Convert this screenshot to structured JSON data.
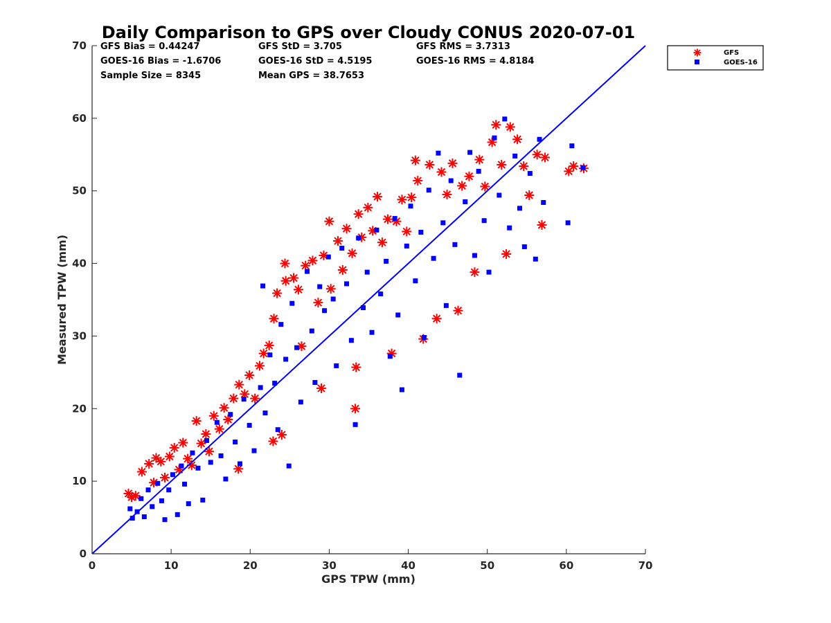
{
  "chart_data": {
    "type": "scatter",
    "title": "Daily Comparison to GPS over Cloudy CONUS 2020-07-01",
    "xlabel": "GPS TPW (mm)",
    "ylabel": "Measured TPW (mm)",
    "xlim": [
      0,
      70
    ],
    "ylim": [
      0,
      70
    ],
    "xticks": [
      "0",
      "10",
      "20",
      "30",
      "40",
      "50",
      "60",
      "70"
    ],
    "yticks": [
      "0",
      "10",
      "20",
      "30",
      "40",
      "50",
      "60",
      "70"
    ],
    "grid": false,
    "legend_position": "outside top-right",
    "stats": [
      [
        "GFS Bias = 0.44247",
        "GFS StD = 3.705",
        "GFS RMS = 3.7313"
      ],
      [
        "GOES-16 Bias = -1.6706",
        "GOES-16 StD = 4.5195",
        "GOES-16 RMS = 4.8184"
      ],
      [
        "Sample Size = 8345",
        "Mean GPS = 38.7653",
        ""
      ]
    ],
    "reference_line": {
      "x": [
        0,
        70
      ],
      "y": [
        0,
        70
      ],
      "color": "#0000ff"
    },
    "series": [
      {
        "name": "GFS",
        "marker": "asterisk",
        "color": "#ff0000",
        "points": [
          [
            4.6,
            8.3
          ],
          [
            5.0,
            7.8
          ],
          [
            5.5,
            8.0
          ],
          [
            6.3,
            11.3
          ],
          [
            7.2,
            12.4
          ],
          [
            7.8,
            9.8
          ],
          [
            8.1,
            13.2
          ],
          [
            8.7,
            12.7
          ],
          [
            9.2,
            10.5
          ],
          [
            9.8,
            13.4
          ],
          [
            10.4,
            14.6
          ],
          [
            11.0,
            11.6
          ],
          [
            11.5,
            15.3
          ],
          [
            12.1,
            13.1
          ],
          [
            12.6,
            12.2
          ],
          [
            13.2,
            18.3
          ],
          [
            13.8,
            15.2
          ],
          [
            14.4,
            16.5
          ],
          [
            14.8,
            14.1
          ],
          [
            15.4,
            19.0
          ],
          [
            16.1,
            17.2
          ],
          [
            16.7,
            20.1
          ],
          [
            17.2,
            18.5
          ],
          [
            17.9,
            21.4
          ],
          [
            18.5,
            11.7
          ],
          [
            18.6,
            23.3
          ],
          [
            19.3,
            22.0
          ],
          [
            19.9,
            24.6
          ],
          [
            20.6,
            21.4
          ],
          [
            21.2,
            25.9
          ],
          [
            21.7,
            27.6
          ],
          [
            22.4,
            28.7
          ],
          [
            22.9,
            15.5
          ],
          [
            23.0,
            32.4
          ],
          [
            23.4,
            35.9
          ],
          [
            24.0,
            16.4
          ],
          [
            24.4,
            40.0
          ],
          [
            24.5,
            37.6
          ],
          [
            25.5,
            38.0
          ],
          [
            26.1,
            36.4
          ],
          [
            26.5,
            28.6
          ],
          [
            27.0,
            39.7
          ],
          [
            27.9,
            40.4
          ],
          [
            28.6,
            34.6
          ],
          [
            29.0,
            22.8
          ],
          [
            29.3,
            41.1
          ],
          [
            30.0,
            45.8
          ],
          [
            30.2,
            36.5
          ],
          [
            31.1,
            43.1
          ],
          [
            31.7,
            39.1
          ],
          [
            32.2,
            44.8
          ],
          [
            32.9,
            41.4
          ],
          [
            33.3,
            20.0
          ],
          [
            33.4,
            25.7
          ],
          [
            33.7,
            46.8
          ],
          [
            34.1,
            43.6
          ],
          [
            34.9,
            47.7
          ],
          [
            35.5,
            44.5
          ],
          [
            36.1,
            49.2
          ],
          [
            36.7,
            42.9
          ],
          [
            37.4,
            46.1
          ],
          [
            37.9,
            27.6
          ],
          [
            38.5,
            45.8
          ],
          [
            39.2,
            48.8
          ],
          [
            39.8,
            44.4
          ],
          [
            40.4,
            49.1
          ],
          [
            40.9,
            54.2
          ],
          [
            41.2,
            51.4
          ],
          [
            41.9,
            29.6
          ],
          [
            42.7,
            53.6
          ],
          [
            43.6,
            32.4
          ],
          [
            44.2,
            52.6
          ],
          [
            44.9,
            49.5
          ],
          [
            45.6,
            53.8
          ],
          [
            46.3,
            33.5
          ],
          [
            46.8,
            50.7
          ],
          [
            47.7,
            52.0
          ],
          [
            48.4,
            38.8
          ],
          [
            49.0,
            54.3
          ],
          [
            49.7,
            50.6
          ],
          [
            50.6,
            56.7
          ],
          [
            51.1,
            59.1
          ],
          [
            51.8,
            53.6
          ],
          [
            52.4,
            41.3
          ],
          [
            52.9,
            58.8
          ],
          [
            53.8,
            57.1
          ],
          [
            54.6,
            53.4
          ],
          [
            55.3,
            49.4
          ],
          [
            56.3,
            55.0
          ],
          [
            56.9,
            45.3
          ],
          [
            57.3,
            54.6
          ],
          [
            60.3,
            52.7
          ],
          [
            60.9,
            53.4
          ],
          [
            62.2,
            53.1
          ]
        ]
      },
      {
        "name": "GOES-16",
        "marker": "square",
        "color": "#0000ff",
        "points": [
          [
            4.8,
            6.2
          ],
          [
            5.1,
            4.9
          ],
          [
            5.7,
            5.8
          ],
          [
            6.2,
            7.6
          ],
          [
            6.6,
            5.1
          ],
          [
            7.1,
            8.8
          ],
          [
            7.6,
            6.5
          ],
          [
            8.3,
            9.7
          ],
          [
            8.8,
            7.3
          ],
          [
            9.2,
            4.7
          ],
          [
            9.7,
            8.8
          ],
          [
            10.2,
            10.9
          ],
          [
            10.8,
            5.4
          ],
          [
            11.3,
            12.1
          ],
          [
            11.7,
            9.6
          ],
          [
            12.2,
            6.9
          ],
          [
            12.7,
            13.9
          ],
          [
            13.4,
            11.8
          ],
          [
            14.0,
            7.4
          ],
          [
            14.5,
            15.6
          ],
          [
            15.0,
            12.6
          ],
          [
            15.8,
            18.1
          ],
          [
            16.3,
            13.5
          ],
          [
            16.9,
            10.3
          ],
          [
            17.5,
            19.2
          ],
          [
            18.1,
            15.4
          ],
          [
            18.7,
            12.4
          ],
          [
            19.2,
            21.3
          ],
          [
            19.9,
            17.7
          ],
          [
            20.5,
            14.2
          ],
          [
            21.3,
            22.9
          ],
          [
            21.6,
            36.9
          ],
          [
            21.9,
            19.4
          ],
          [
            22.5,
            27.4
          ],
          [
            23.1,
            23.5
          ],
          [
            23.5,
            17.1
          ],
          [
            23.9,
            31.6
          ],
          [
            24.5,
            26.8
          ],
          [
            24.9,
            12.1
          ],
          [
            25.3,
            34.5
          ],
          [
            25.9,
            28.4
          ],
          [
            26.4,
            20.9
          ],
          [
            27.2,
            38.9
          ],
          [
            27.8,
            30.7
          ],
          [
            28.2,
            23.6
          ],
          [
            28.8,
            36.8
          ],
          [
            29.4,
            33.5
          ],
          [
            29.9,
            40.9
          ],
          [
            30.5,
            35.1
          ],
          [
            30.9,
            25.9
          ],
          [
            31.6,
            42.1
          ],
          [
            32.2,
            37.2
          ],
          [
            32.8,
            29.4
          ],
          [
            33.3,
            17.8
          ],
          [
            33.7,
            43.5
          ],
          [
            34.3,
            33.9
          ],
          [
            34.8,
            38.8
          ],
          [
            35.4,
            30.5
          ],
          [
            36.0,
            44.6
          ],
          [
            36.5,
            35.8
          ],
          [
            37.2,
            40.3
          ],
          [
            37.7,
            27.2
          ],
          [
            38.3,
            46.2
          ],
          [
            38.7,
            32.9
          ],
          [
            39.2,
            22.6
          ],
          [
            39.8,
            42.4
          ],
          [
            40.3,
            47.9
          ],
          [
            40.9,
            37.6
          ],
          [
            41.6,
            44.3
          ],
          [
            42.0,
            29.8
          ],
          [
            42.6,
            50.1
          ],
          [
            43.2,
            40.7
          ],
          [
            43.8,
            55.2
          ],
          [
            44.4,
            45.6
          ],
          [
            44.8,
            34.2
          ],
          [
            45.4,
            51.4
          ],
          [
            45.9,
            42.6
          ],
          [
            46.5,
            24.6
          ],
          [
            47.2,
            48.5
          ],
          [
            47.8,
            55.3
          ],
          [
            48.4,
            41.1
          ],
          [
            48.9,
            52.7
          ],
          [
            49.6,
            45.9
          ],
          [
            50.2,
            38.8
          ],
          [
            50.9,
            57.3
          ],
          [
            51.5,
            49.4
          ],
          [
            52.2,
            59.9
          ],
          [
            52.8,
            44.9
          ],
          [
            53.5,
            54.8
          ],
          [
            54.1,
            47.6
          ],
          [
            54.7,
            42.3
          ],
          [
            55.4,
            52.4
          ],
          [
            56.1,
            40.6
          ],
          [
            56.6,
            57.1
          ],
          [
            57.1,
            48.4
          ],
          [
            60.2,
            45.6
          ],
          [
            60.7,
            56.2
          ],
          [
            62.1,
            53.2
          ]
        ]
      }
    ]
  }
}
